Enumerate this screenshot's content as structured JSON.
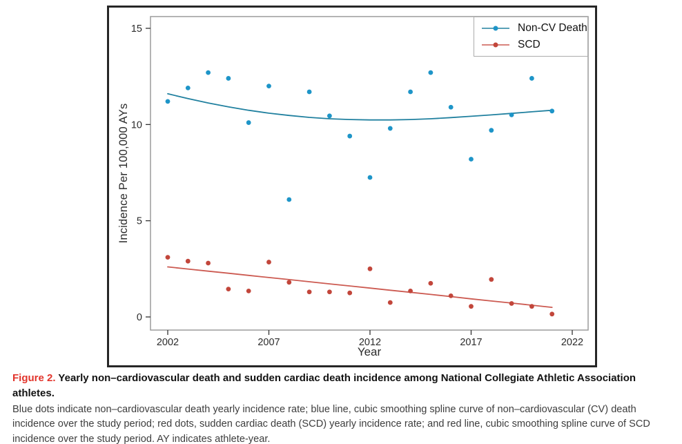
{
  "colors": {
    "noncv_dot": "#1e95c8",
    "noncv_line": "#20809f",
    "scd_dot": "#c2463b",
    "scd_line": "#cc5a51",
    "axis_text": "#2b2b2b",
    "panel_border": "#9b9b9b",
    "figure_border": "#262626",
    "figure_label_red": "#e2342b"
  },
  "chart_data": {
    "type": "scatter",
    "title": "",
    "xlabel": "Year",
    "ylabel": "Incidence Per 100,000 AYs",
    "xlim": [
      2001.15,
      2022.8
    ],
    "ylim": [
      -0.68,
      15.6
    ],
    "x_ticks": [
      2002,
      2007,
      2012,
      2017,
      2022
    ],
    "y_ticks": [
      0,
      5,
      10,
      15
    ],
    "grid": false,
    "legend_position": "top-right",
    "x": [
      2002,
      2003,
      2004,
      2005,
      2006,
      2007,
      2008,
      2009,
      2010,
      2011,
      2012,
      2013,
      2014,
      2015,
      2016,
      2017,
      2018,
      2019,
      2020,
      2021
    ],
    "series": [
      {
        "name": "Non-CV Death",
        "marker": "dot",
        "dot_color": "#1e95c8",
        "line_color": "#20809f",
        "values": [
          11.2,
          11.9,
          12.7,
          12.4,
          10.1,
          12.0,
          6.1,
          11.7,
          10.45,
          9.4,
          7.25,
          9.8,
          11.7,
          12.7,
          10.9,
          8.2,
          9.7,
          10.5,
          12.4,
          10.7
        ],
        "spline_note": "cubic smoothing spline",
        "spline": [
          11.6,
          11.35,
          11.12,
          10.92,
          10.74,
          10.59,
          10.47,
          10.37,
          10.3,
          10.26,
          10.24,
          10.24,
          10.26,
          10.3,
          10.36,
          10.43,
          10.5,
          10.58,
          10.66,
          10.74
        ]
      },
      {
        "name": "SCD",
        "marker": "dot",
        "dot_color": "#c2463b",
        "line_color": "#cc5a51",
        "values": [
          3.1,
          2.9,
          2.8,
          1.45,
          1.35,
          2.85,
          1.8,
          1.3,
          1.3,
          1.25,
          2.5,
          0.75,
          1.35,
          1.75,
          1.1,
          0.55,
          1.95,
          0.7,
          0.55,
          0.15
        ],
        "spline_note": "cubic smoothing spline",
        "spline": [
          2.6,
          2.49,
          2.38,
          2.27,
          2.16,
          2.05,
          1.94,
          1.83,
          1.72,
          1.61,
          1.5,
          1.39,
          1.28,
          1.17,
          1.06,
          0.94,
          0.83,
          0.72,
          0.61,
          0.5
        ]
      }
    ]
  },
  "caption": {
    "label": "Figure 2.",
    "title": "Yearly non–cardiovascular death and sudden cardiac death incidence among National Collegiate Athletic Association athletes.",
    "body": "Blue dots indicate non–cardiovascular death yearly incidence rate; blue line, cubic smoothing spline curve of non–cardiovascular (CV) death incidence over the study period; red dots, sudden cardiac death (SCD) yearly incidence rate; and red line, cubic smoothing spline curve of SCD incidence over the study period. AY indicates athlete-year."
  }
}
